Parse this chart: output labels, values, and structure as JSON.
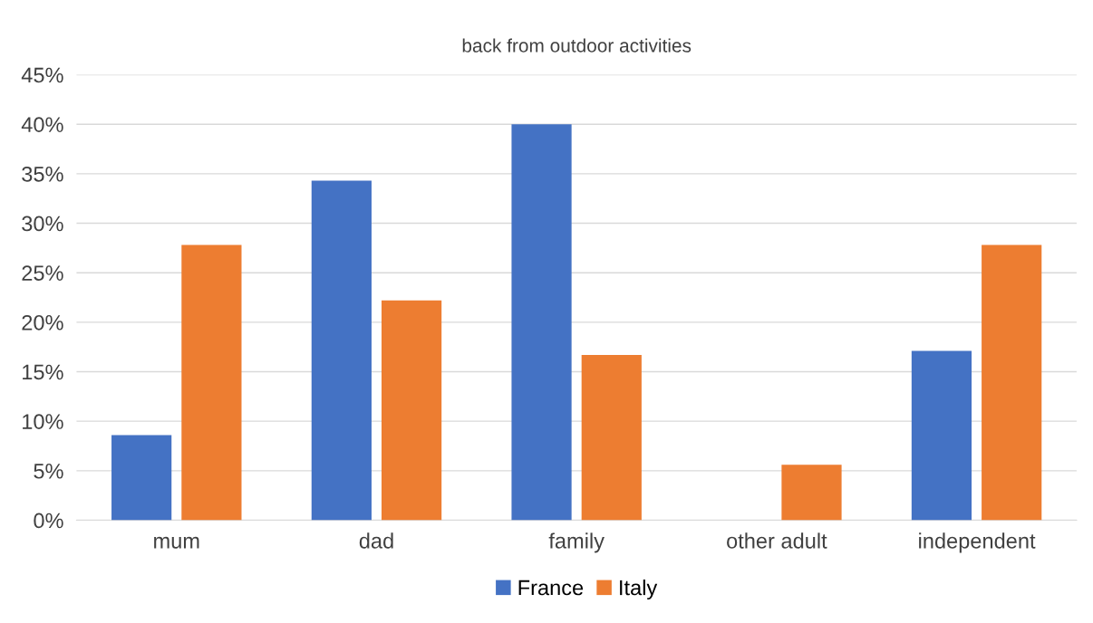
{
  "chart_data": {
    "type": "bar",
    "title": "back from outdoor activities",
    "categories": [
      "mum",
      "dad",
      "family",
      "other adult",
      "independent"
    ],
    "series": [
      {
        "name": "France",
        "color": "#4472c4",
        "values": [
          8.6,
          34.3,
          40.0,
          0,
          17.1
        ]
      },
      {
        "name": "Italy",
        "color": "#ed7d31",
        "values": [
          27.8,
          22.2,
          16.7,
          5.6,
          27.8
        ]
      }
    ],
    "ylim": [
      0,
      45
    ],
    "yticks": [
      {
        "value": 0,
        "label": "0%"
      },
      {
        "value": 5,
        "label": "5%"
      },
      {
        "value": 10,
        "label": "10%"
      },
      {
        "value": 15,
        "label": "15%"
      },
      {
        "value": 20,
        "label": "20%"
      },
      {
        "value": 25,
        "label": "25%"
      },
      {
        "value": 30,
        "label": "30%"
      },
      {
        "value": 35,
        "label": "35%"
      },
      {
        "value": 40,
        "label": "40%"
      },
      {
        "value": 45,
        "label": "45%"
      }
    ],
    "grid": "y",
    "legend": "bottom"
  }
}
